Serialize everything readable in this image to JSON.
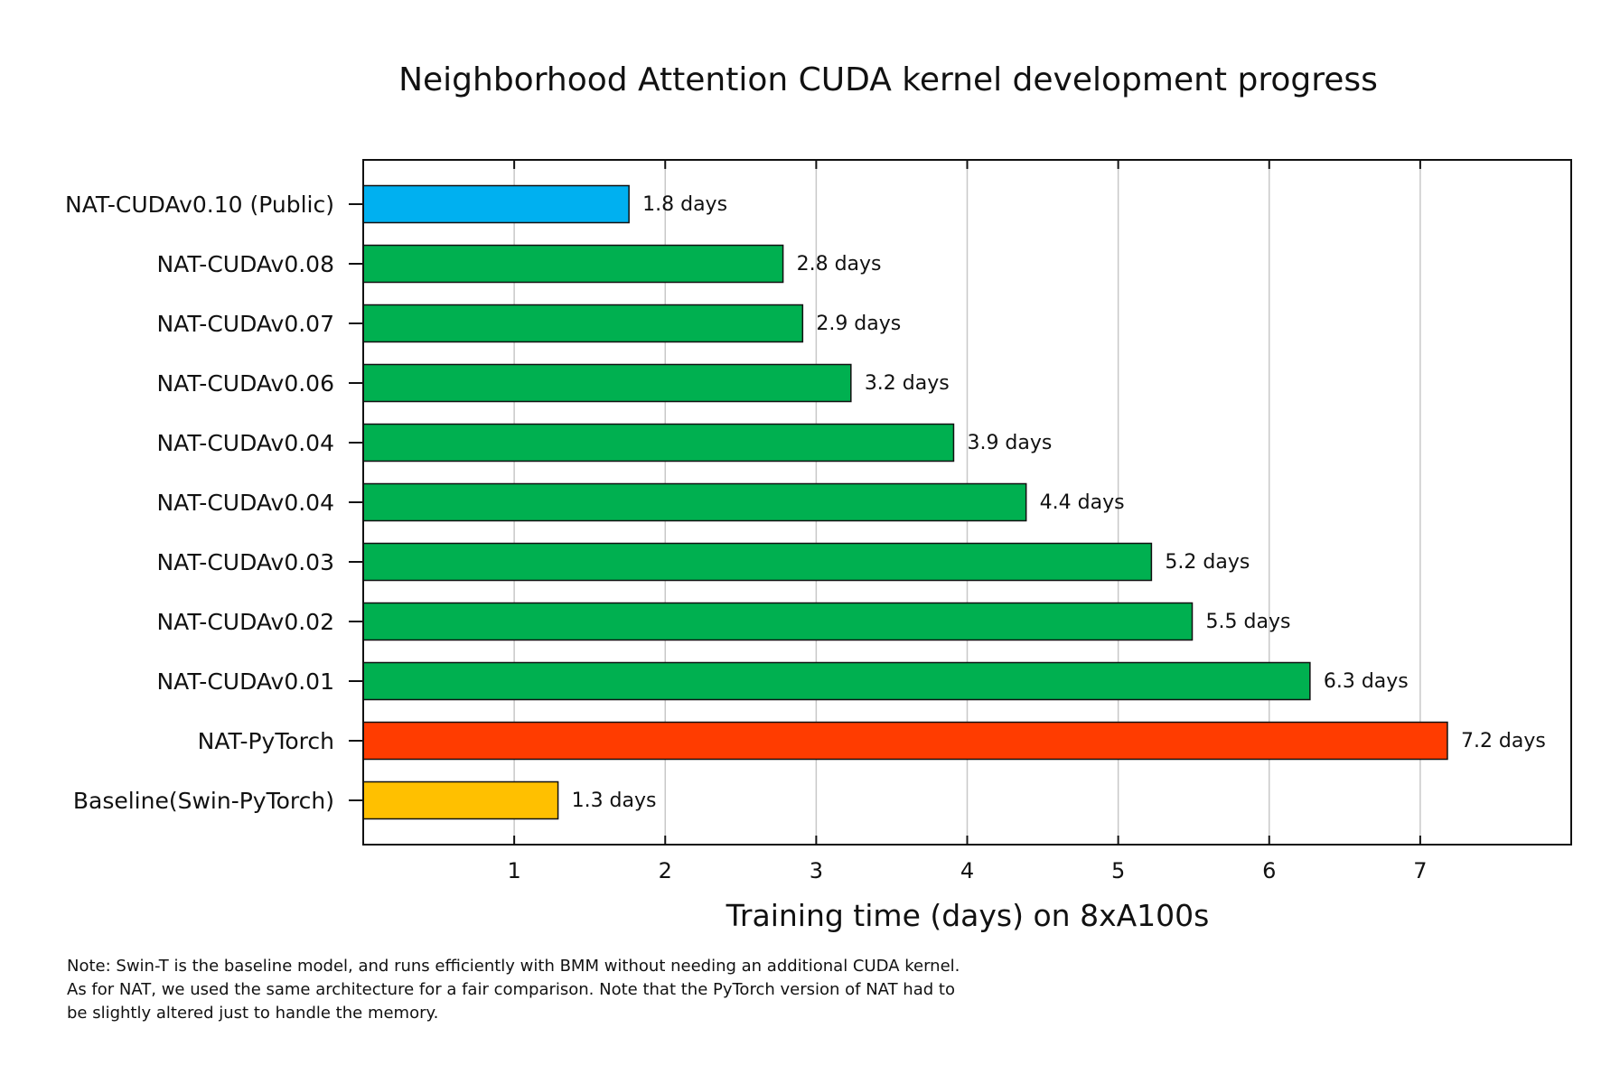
{
  "chart_data": {
    "type": "bar",
    "orientation": "horizontal",
    "title": "Neighborhood Attention CUDA kernel development progress",
    "xlabel": "Training time (days) on 8xA100s",
    "ylabel": "",
    "xlim": [
      0,
      8
    ],
    "xticks": [
      1,
      2,
      3,
      4,
      5,
      6,
      7
    ],
    "grid": "vertical",
    "bars": [
      {
        "label": "NAT-CUDAv0.10 (Public)",
        "value": 1.76,
        "value_label": "1.8 days",
        "color": "#00b0f0"
      },
      {
        "label": "NAT-CUDAv0.08",
        "value": 2.78,
        "value_label": "2.8 days",
        "color": "#00b050"
      },
      {
        "label": "NAT-CUDAv0.07",
        "value": 2.91,
        "value_label": "2.9 days",
        "color": "#00b050"
      },
      {
        "label": "NAT-CUDAv0.06",
        "value": 3.23,
        "value_label": "3.2 days",
        "color": "#00b050"
      },
      {
        "label": "NAT-CUDAv0.04",
        "value": 3.91,
        "value_label": "3.9 days",
        "color": "#00b050"
      },
      {
        "label": "NAT-CUDAv0.04",
        "value": 4.39,
        "value_label": "4.4 days",
        "color": "#00b050"
      },
      {
        "label": "NAT-CUDAv0.03",
        "value": 5.22,
        "value_label": "5.2 days",
        "color": "#00b050"
      },
      {
        "label": "NAT-CUDAv0.02",
        "value": 5.49,
        "value_label": "5.5 days",
        "color": "#00b050"
      },
      {
        "label": "NAT-CUDAv0.01",
        "value": 6.27,
        "value_label": "6.3 days",
        "color": "#00b050"
      },
      {
        "label": "NAT-PyTorch",
        "value": 7.18,
        "value_label": "7.2 days",
        "color": "#ff3c00"
      },
      {
        "label": "Baseline(Swin-PyTorch)",
        "value": 1.29,
        "value_label": "1.3 days",
        "color": "#ffc000"
      }
    ]
  },
  "note": {
    "lines": [
      "Note:  Swin-T is the baseline model, and runs efficiently with BMM without needing an additional CUDA kernel.",
      "As for NAT, we used the same architecture for a fair comparison.  Note that the PyTorch version of NAT had to",
      "be slightly altered just to handle the memory."
    ]
  }
}
